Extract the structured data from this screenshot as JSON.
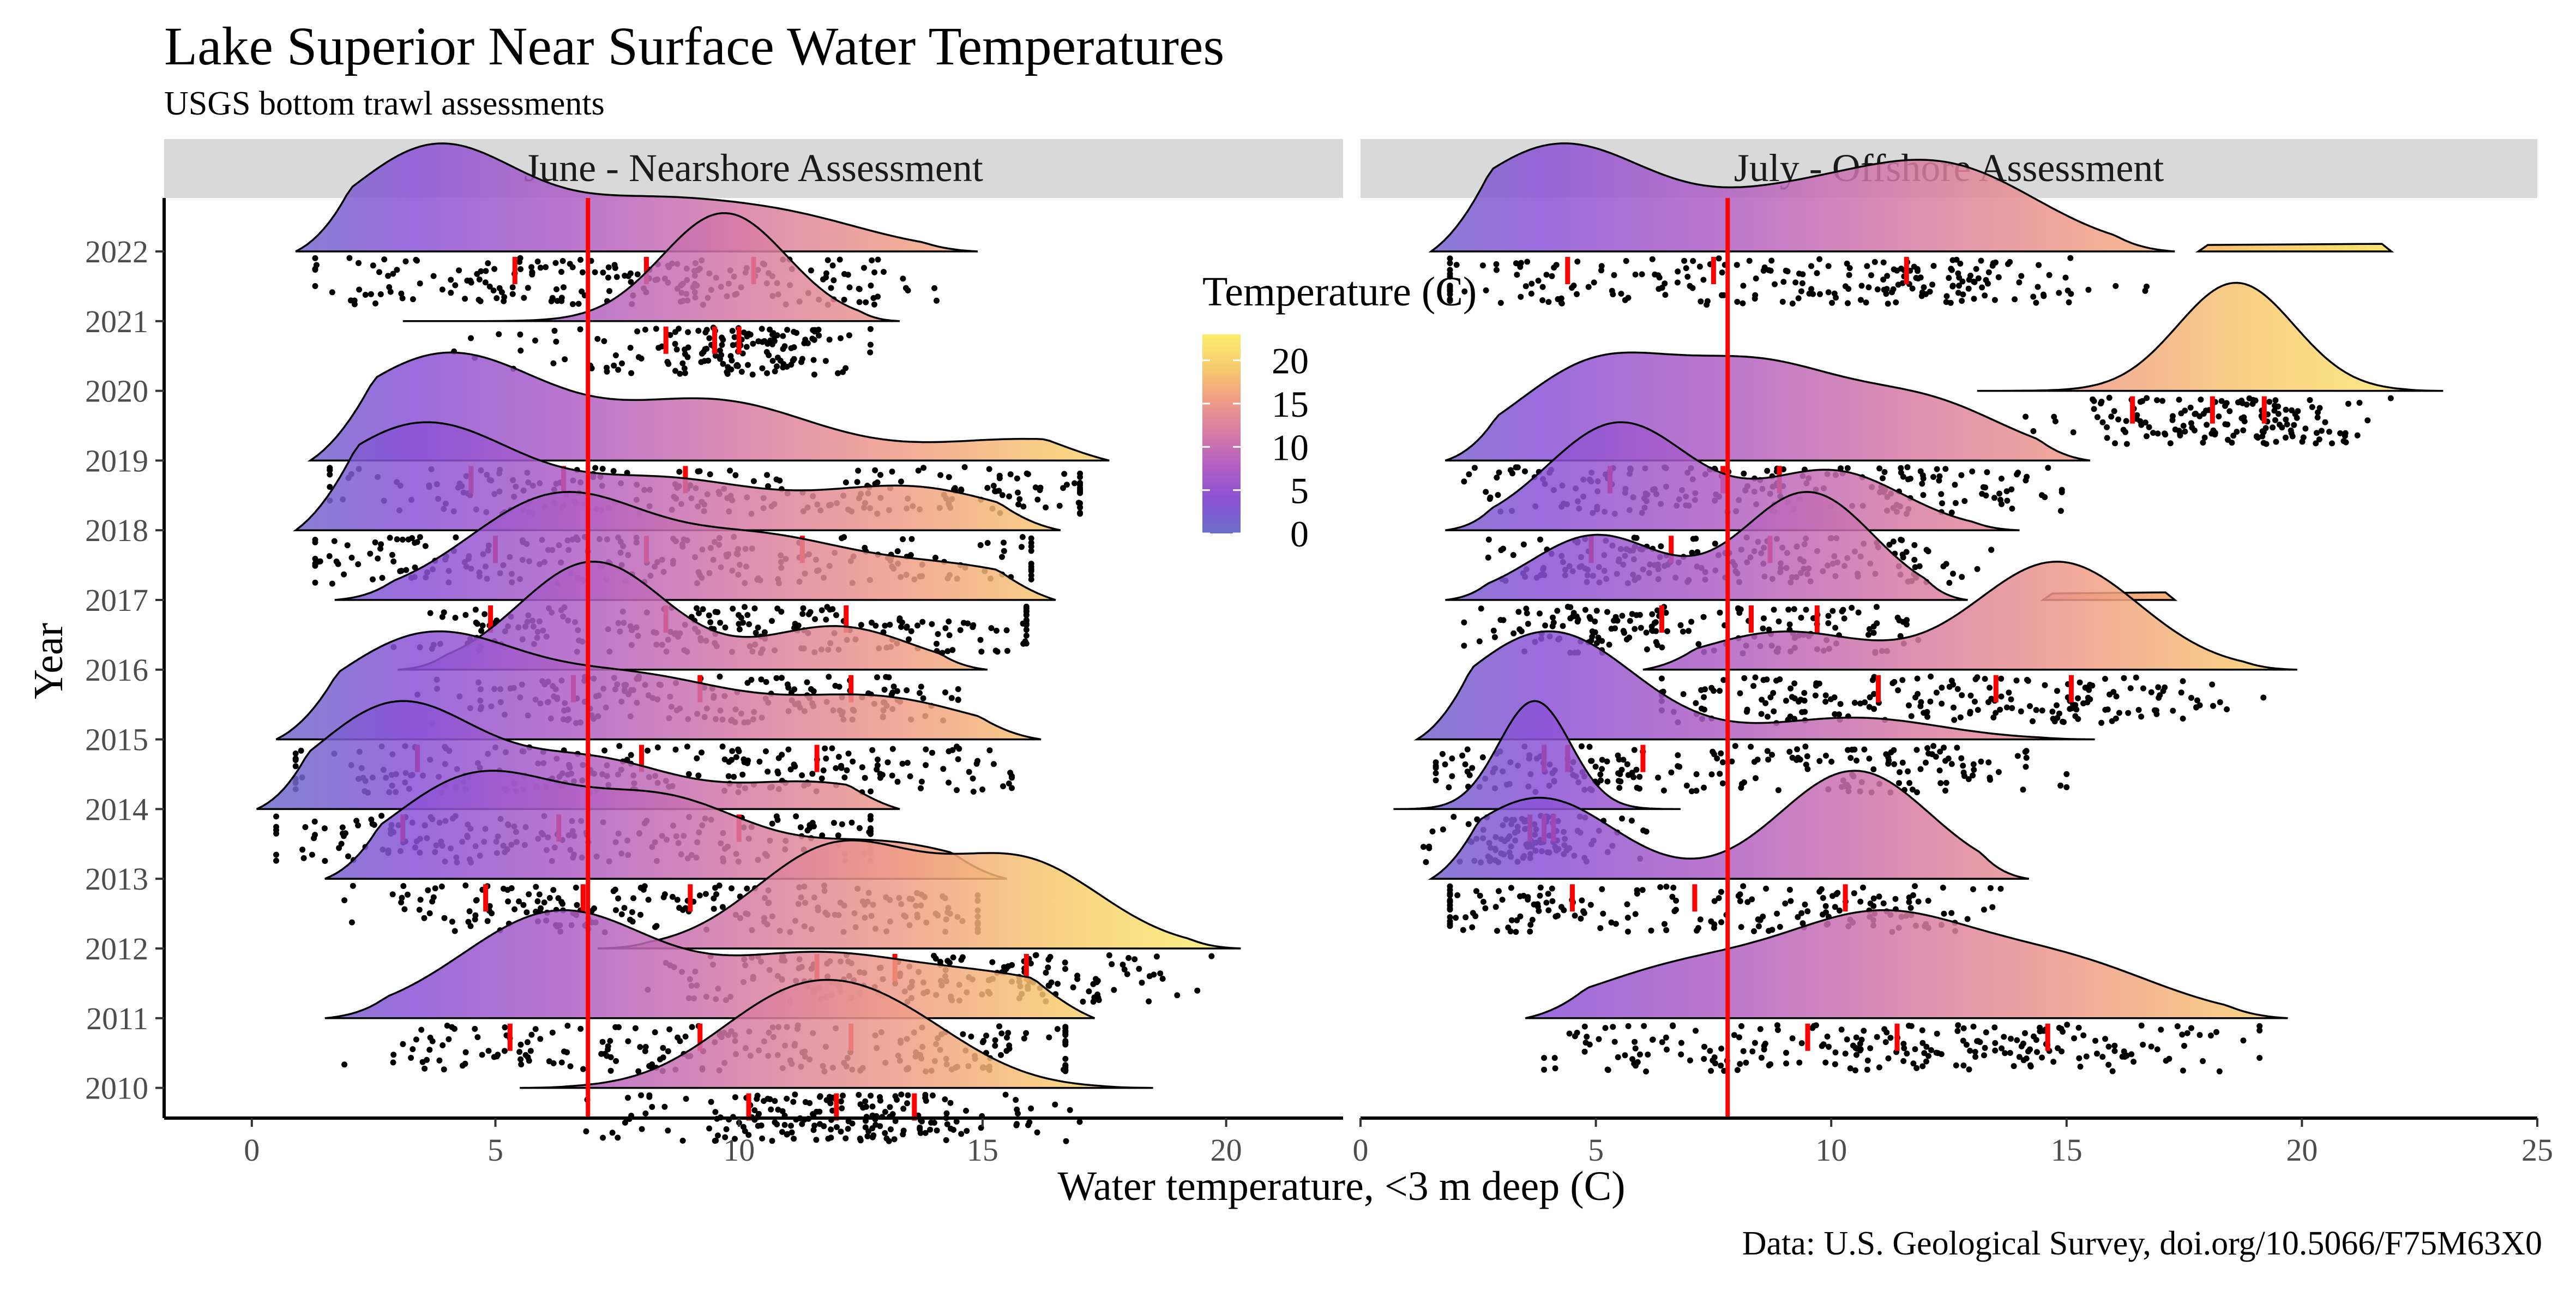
{
  "chart_data": {
    "type": "ridgeline",
    "title": "Lake Superior Near Surface Water Temperatures",
    "subtitle": "USGS bottom trawl assessments",
    "caption": "Data: U.S. Geological Survey, doi.org/10.5066/F75M63X0",
    "xlabel": "Water temperature, <3 m deep (C)",
    "ylabel": "Year",
    "years": [
      "2010",
      "2011",
      "2012",
      "2013",
      "2014",
      "2015",
      "2016",
      "2017",
      "2018",
      "2019",
      "2020",
      "2021",
      "2022"
    ],
    "legend": {
      "title": "Temperature (C)",
      "ticks": [
        0,
        5,
        10,
        15,
        20
      ],
      "placement": "inside-left-panel-top-right",
      "colors": [
        "#6a6fc8",
        "#8a52d6",
        "#b05fc4",
        "#d67aa6",
        "#ef9c86",
        "#f8cb6e",
        "#fbee6e"
      ]
    },
    "panels": [
      {
        "title": "June - Nearshore Assessment",
        "xlim": [
          -1.8,
          22.4
        ],
        "xticks": [
          0,
          5,
          10,
          15,
          20
        ],
        "reference_line": 6.9,
        "ridges": [
          {
            "year": "2010",
            "range": [
              5.5,
              18.5
            ],
            "peaks": [
              [
                11,
                1
              ],
              [
                13.2,
                0.75
              ]
            ],
            "quartiles": [
              10.2,
              12,
              13.6
            ]
          },
          {
            "year": "2011",
            "range": [
              1.5,
              17.3
            ],
            "peaks": [
              [
                6.3,
                1
              ],
              [
                11.5,
                0.55
              ],
              [
                15.5,
                0.35
              ]
            ],
            "quartiles": [
              5.3,
              9.2,
              12.3
            ]
          },
          {
            "year": "2012",
            "range": [
              7.1,
              20.3
            ],
            "peaks": [
              [
                12,
                1
              ],
              [
                15.8,
                0.85
              ]
            ],
            "quartiles": [
              11.6,
              13.2,
              15.9
            ]
          },
          {
            "year": "2013",
            "range": [
              1.5,
              15.5
            ],
            "peaks": [
              [
                4.6,
                1
              ],
              [
                8.5,
                0.75
              ],
              [
                13,
                0.35
              ]
            ],
            "quartiles": [
              4.8,
              6.8,
              9
            ]
          },
          {
            "year": "2014",
            "range": [
              0.1,
              13.3
            ],
            "peaks": [
              [
                3,
                1
              ],
              [
                7,
                0.45
              ],
              [
                11.5,
                0.25
              ]
            ],
            "quartiles": [
              3.1,
              6.3,
              10
            ]
          },
          {
            "year": "2015",
            "range": [
              0.5,
              16.2
            ],
            "peaks": [
              [
                3.6,
                1
              ],
              [
                8,
                0.55
              ],
              [
                12.8,
                0.4
              ]
            ],
            "quartiles": [
              3.4,
              8,
              11.6
            ]
          },
          {
            "year": "2016",
            "range": [
              3,
              15.1
            ],
            "peaks": [
              [
                7,
                1
              ],
              [
                12,
                0.4
              ]
            ],
            "quartiles": [
              6.6,
              9.2,
              12.3
            ]
          },
          {
            "year": "2017",
            "range": [
              1.7,
              16.5
            ],
            "peaks": [
              [
                6.3,
                1
              ],
              [
                10.5,
                0.55
              ],
              [
                14.5,
                0.3
              ]
            ],
            "quartiles": [
              4.9,
              8.5,
              12.2
            ]
          },
          {
            "year": "2018",
            "range": [
              0.9,
              16.6
            ],
            "peaks": [
              [
                3.5,
                1
              ],
              [
                8.5,
                0.45
              ],
              [
                13.5,
                0.4
              ]
            ],
            "quartiles": [
              5,
              8.1,
              11.3
            ]
          },
          {
            "year": "2019",
            "range": [
              1.2,
              17.6
            ],
            "peaks": [
              [
                4,
                1
              ],
              [
                9.5,
                0.55
              ],
              [
                16,
                0.2
              ]
            ],
            "quartiles": [
              4.5,
              6.4,
              8.9
            ]
          },
          {
            "year": "2021",
            "range": [
              3.1,
              13.3
            ],
            "peaks": [
              [
                9.7,
                1
              ]
            ],
            "quartiles": [
              8.5,
              9.5,
              10
            ]
          },
          {
            "year": "2022",
            "range": [
              0.9,
              14.9
            ],
            "peaks": [
              [
                3.8,
                1
              ],
              [
                8,
                0.4
              ],
              [
                11,
                0.3
              ]
            ],
            "quartiles": [
              5.4,
              8.1,
              10.3
            ]
          }
        ]
      },
      {
        "title": "July - Offshore Assessment",
        "xlim": [
          0,
          25
        ],
        "xticks": [
          0,
          5,
          10,
          15,
          20,
          25
        ],
        "reference_line": 7.8,
        "ridges": [
          {
            "year": "2011",
            "range": [
              3.5,
              19.7
            ],
            "peaks": [
              [
                6.8,
                0.5
              ],
              [
                11,
                1
              ],
              [
                15,
                0.55
              ]
            ],
            "quartiles": [
              9.5,
              11.4,
              14.6
            ]
          },
          {
            "year": "2012",
            "range": [],
            "peaks": [],
            "quartiles": []
          },
          {
            "year": "2013",
            "range": [
              1.5,
              14.2
            ],
            "peaks": [
              [
                3.8,
                0.75
              ],
              [
                10.5,
                1
              ]
            ],
            "quartiles": [
              4.5,
              7.1,
              10.3
            ]
          },
          {
            "year": "2014",
            "range": [
              0.7,
              6.8
            ],
            "peaks": [
              [
                3.7,
                1
              ]
            ],
            "quartiles": [
              3.6,
              3.9,
              4.1
            ]
          },
          {
            "year": "2015",
            "range": [
              1.2,
              15.6
            ],
            "peaks": [
              [
                4,
                1
              ],
              [
                10.5,
                0.2
              ]
            ],
            "quartiles": [
              3.9,
              4.4,
              6
            ]
          },
          {
            "year": "2016",
            "range": [
              6,
              19.9
            ],
            "peaks": [
              [
                9,
                0.35
              ],
              [
                14.8,
                1
              ]
            ],
            "quartiles": [
              11,
              13.5,
              15.1
            ]
          },
          {
            "year": "2017",
            "range": [
              1.8,
              12.9
            ],
            "peaks": [
              [
                9.5,
                1
              ],
              [
                5,
                0.6
              ]
            ],
            "quartiles": [
              6.4,
              8.3,
              9.7
            ],
            "extra_range": [
              14.5,
              17.3
            ]
          },
          {
            "year": "2018",
            "range": [
              1.8,
              14
            ],
            "peaks": [
              [
                5.5,
                1
              ],
              [
                10,
                0.55
              ]
            ],
            "quartiles": [
              4.9,
              6.6,
              8.7
            ]
          },
          {
            "year": "2019",
            "range": [
              1.8,
              15.5
            ],
            "peaks": [
              [
                5,
                1
              ],
              [
                8.5,
                0.9
              ],
              [
                12,
                0.6
              ]
            ],
            "quartiles": [
              5.3,
              7.7,
              8.9
            ]
          },
          {
            "year": "2020",
            "range": [
              13.1,
              23
            ],
            "peaks": [
              [
                18.6,
                1
              ]
            ],
            "quartiles": [
              16.4,
              18.1,
              19.2
            ]
          },
          {
            "year": "2022",
            "range": [
              1.5,
              17.3
            ],
            "peaks": [
              [
                4.2,
                1
              ],
              [
                9,
                0.45
              ],
              [
                12.5,
                0.75
              ]
            ],
            "quartiles": [
              4.4,
              7.5,
              11.6
            ],
            "extra_range": [
              17.8,
              21.9
            ]
          }
        ]
      }
    ]
  }
}
